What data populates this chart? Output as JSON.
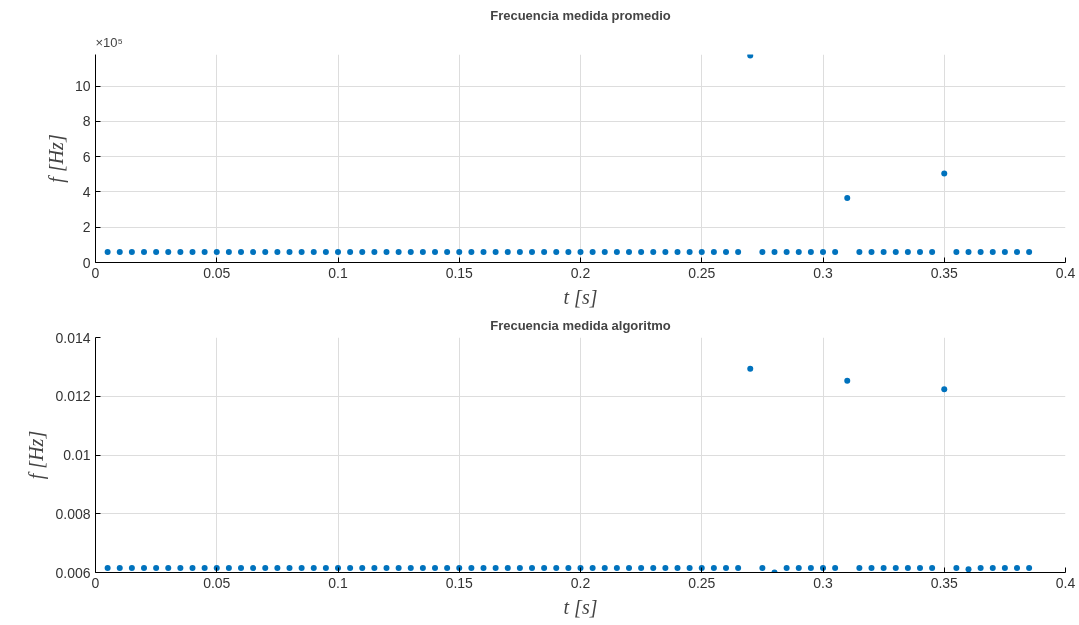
{
  "chart_data": [
    {
      "type": "scatter",
      "title": "Frecuencia medida promedio",
      "xlabel": "t [s]",
      "ylabel": "f [Hz]",
      "annotations": [
        "×10⁵"
      ],
      "marker": "circle",
      "grid": true,
      "xlim": [
        0,
        0.4
      ],
      "xticks": [
        0,
        0.05,
        0.1,
        0.15,
        0.2,
        0.25,
        0.3,
        0.35,
        0.4
      ],
      "ylim": [
        0,
        11.8
      ],
      "yticks": [
        0,
        2,
        4,
        6,
        8,
        10
      ],
      "x": [
        0.005,
        0.01,
        0.015,
        0.02,
        0.025,
        0.03,
        0.035,
        0.04,
        0.045,
        0.05,
        0.055,
        0.06,
        0.065,
        0.07,
        0.075,
        0.08,
        0.085,
        0.09,
        0.095,
        0.1,
        0.105,
        0.11,
        0.115,
        0.12,
        0.125,
        0.13,
        0.135,
        0.14,
        0.145,
        0.15,
        0.155,
        0.16,
        0.165,
        0.17,
        0.175,
        0.18,
        0.185,
        0.19,
        0.195,
        0.2,
        0.205,
        0.21,
        0.215,
        0.22,
        0.225,
        0.23,
        0.235,
        0.24,
        0.245,
        0.25,
        0.255,
        0.26,
        0.265,
        0.27,
        0.275,
        0.28,
        0.285,
        0.29,
        0.295,
        0.3,
        0.305,
        0.31,
        0.315,
        0.32,
        0.325,
        0.33,
        0.335,
        0.34,
        0.345,
        0.35,
        0.355,
        0.36,
        0.365,
        0.37,
        0.375,
        0.38,
        0.385
      ],
      "series": [
        {
          "color": "#0072bd",
          "values": [
            0.59,
            0.59,
            0.59,
            0.59,
            0.59,
            0.59,
            0.59,
            0.59,
            0.59,
            0.59,
            0.59,
            0.59,
            0.59,
            0.59,
            0.59,
            0.59,
            0.59,
            0.59,
            0.59,
            0.59,
            0.59,
            0.59,
            0.59,
            0.59,
            0.59,
            0.59,
            0.59,
            0.59,
            0.59,
            0.59,
            0.59,
            0.59,
            0.59,
            0.59,
            0.59,
            0.59,
            0.59,
            0.59,
            0.59,
            0.59,
            0.59,
            0.59,
            0.59,
            0.59,
            0.59,
            0.59,
            0.59,
            0.59,
            0.59,
            0.59,
            0.59,
            0.59,
            0.59,
            11.75,
            0.59,
            0.59,
            0.59,
            0.59,
            0.59,
            0.59,
            0.59,
            3.66,
            0.59,
            0.59,
            0.59,
            0.59,
            0.59,
            0.59,
            0.59,
            5.05,
            0.59,
            0.59,
            0.59,
            0.59,
            0.59,
            0.59,
            0.59
          ]
        }
      ]
    },
    {
      "type": "scatter",
      "title": "Frecuencia medida algoritmo",
      "xlabel": "t [s]",
      "ylabel": "f [Hz]",
      "marker": "circle",
      "grid": true,
      "xlim": [
        0,
        0.4
      ],
      "xticks": [
        0,
        0.05,
        0.1,
        0.15,
        0.2,
        0.25,
        0.3,
        0.35,
        0.4
      ],
      "ylim": [
        0.006,
        0.014
      ],
      "yticks": [
        0.006,
        0.008,
        0.01,
        0.012,
        0.014
      ],
      "x": [
        0.005,
        0.01,
        0.015,
        0.02,
        0.025,
        0.03,
        0.035,
        0.04,
        0.045,
        0.05,
        0.055,
        0.06,
        0.065,
        0.07,
        0.075,
        0.08,
        0.085,
        0.09,
        0.095,
        0.1,
        0.105,
        0.11,
        0.115,
        0.12,
        0.125,
        0.13,
        0.135,
        0.14,
        0.145,
        0.15,
        0.155,
        0.16,
        0.165,
        0.17,
        0.175,
        0.18,
        0.185,
        0.19,
        0.195,
        0.2,
        0.205,
        0.21,
        0.215,
        0.22,
        0.225,
        0.23,
        0.235,
        0.24,
        0.245,
        0.25,
        0.255,
        0.26,
        0.265,
        0.27,
        0.275,
        0.28,
        0.285,
        0.29,
        0.295,
        0.3,
        0.305,
        0.31,
        0.315,
        0.32,
        0.325,
        0.33,
        0.335,
        0.34,
        0.345,
        0.35,
        0.355,
        0.36,
        0.365,
        0.37,
        0.375,
        0.38,
        0.385
      ],
      "series": [
        {
          "color": "#0072bd",
          "values": [
            0.00615,
            0.00615,
            0.00615,
            0.00615,
            0.00615,
            0.00615,
            0.00615,
            0.00615,
            0.00615,
            0.00615,
            0.00615,
            0.00615,
            0.00615,
            0.00615,
            0.00615,
            0.00615,
            0.00615,
            0.00615,
            0.00615,
            0.00615,
            0.00615,
            0.00615,
            0.00615,
            0.00615,
            0.00615,
            0.00615,
            0.00615,
            0.00615,
            0.00615,
            0.00615,
            0.00615,
            0.00615,
            0.00615,
            0.00615,
            0.00615,
            0.00615,
            0.00615,
            0.00615,
            0.00615,
            0.00615,
            0.00615,
            0.00615,
            0.00615,
            0.00615,
            0.00615,
            0.00615,
            0.00615,
            0.00615,
            0.00615,
            0.00615,
            0.00615,
            0.00615,
            0.00615,
            0.01294,
            0.00615,
            0.006,
            0.00615,
            0.00615,
            0.00615,
            0.00615,
            0.00615,
            0.01253,
            0.00615,
            0.00615,
            0.00615,
            0.00615,
            0.00615,
            0.00615,
            0.00615,
            0.01224,
            0.00615,
            0.00611,
            0.00615,
            0.00615,
            0.00615,
            0.00615,
            0.00615
          ]
        }
      ]
    }
  ]
}
